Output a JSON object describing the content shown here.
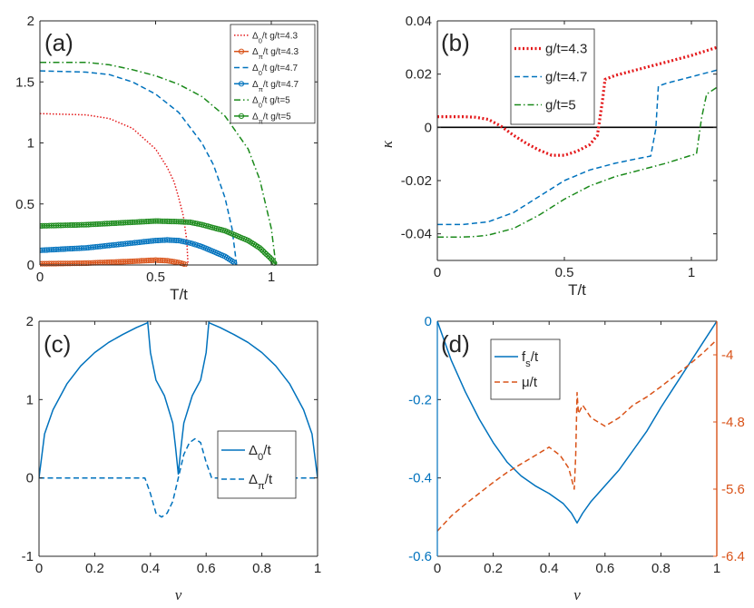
{
  "colors": {
    "blue": "#0072BD",
    "red": "#D95319",
    "darkred": "#E41A1C",
    "green": "#1B8A1B",
    "axis": "#262626",
    "black": "#000000"
  },
  "chart_data": [
    {
      "id": "a",
      "type": "line",
      "panel_label": "(a)",
      "xlabel": "T/t",
      "ylabel": "",
      "xlim": [
        0,
        1.2
      ],
      "ylim": [
        0,
        2
      ],
      "xticks": [
        0,
        0.5,
        1
      ],
      "xtick_labels": [
        "0",
        "0.5",
        "1"
      ],
      "yticks": [
        0,
        0.5,
        1,
        1.5,
        2
      ],
      "ytick_labels": [
        "0",
        "0.5",
        "1",
        "1.5",
        "2"
      ],
      "legend_position": "top-right",
      "series": [
        {
          "name": "Δ0/t  g/t=4.3",
          "legend_main": "Δ",
          "legend_sub": "0",
          "legend_rest": "/t  g/t=4.3",
          "color": "#E41A1C",
          "style": "dotted",
          "marker": "none",
          "x": [
            0,
            0.2,
            0.3,
            0.4,
            0.5,
            0.55,
            0.58,
            0.6,
            0.62,
            0.635,
            0.64
          ],
          "y": [
            1.24,
            1.23,
            1.2,
            1.12,
            0.95,
            0.8,
            0.68,
            0.55,
            0.4,
            0.2,
            0
          ]
        },
        {
          "name": "Δπ/t  g/t=4.3",
          "legend_main": "Δ",
          "legend_sub": "π",
          "legend_rest": "/t  g/t=4.3",
          "color": "#D95319",
          "style": "solid",
          "marker": "circle",
          "x": [
            0,
            0.1,
            0.2,
            0.3,
            0.4,
            0.5,
            0.55,
            0.6,
            0.62,
            0.635
          ],
          "y": [
            0.01,
            0.012,
            0.015,
            0.022,
            0.03,
            0.04,
            0.035,
            0.02,
            0.01,
            0
          ]
        },
        {
          "name": "Δ0/t  g/t=4.7",
          "legend_main": "Δ",
          "legend_sub": "0",
          "legend_rest": "/t  g/t=4.7",
          "color": "#0072BD",
          "style": "dashed",
          "marker": "none",
          "x": [
            0,
            0.2,
            0.3,
            0.4,
            0.5,
            0.6,
            0.7,
            0.75,
            0.8,
            0.83,
            0.85
          ],
          "y": [
            1.59,
            1.58,
            1.56,
            1.5,
            1.4,
            1.25,
            1.0,
            0.82,
            0.55,
            0.3,
            0
          ]
        },
        {
          "name": "Δπ/t  g/t=4.7",
          "legend_main": "Δ",
          "legend_sub": "π",
          "legend_rest": "/t  g/t=4.7",
          "color": "#0072BD",
          "style": "solid",
          "marker": "circle",
          "x": [
            0,
            0.1,
            0.2,
            0.3,
            0.4,
            0.5,
            0.55,
            0.6,
            0.65,
            0.7,
            0.75,
            0.8,
            0.84,
            0.85
          ],
          "y": [
            0.12,
            0.13,
            0.14,
            0.16,
            0.18,
            0.2,
            0.205,
            0.2,
            0.18,
            0.15,
            0.11,
            0.07,
            0.02,
            0
          ]
        },
        {
          "name": "Δ0/t  g/t=5",
          "legend_main": "Δ",
          "legend_sub": "0",
          "legend_rest": "/t  g/t=5",
          "color": "#1B8A1B",
          "style": "dashdot",
          "marker": "none",
          "x": [
            0,
            0.2,
            0.3,
            0.4,
            0.5,
            0.6,
            0.7,
            0.8,
            0.9,
            0.95,
            1.0,
            1.02
          ],
          "y": [
            1.66,
            1.66,
            1.64,
            1.6,
            1.55,
            1.48,
            1.38,
            1.22,
            0.95,
            0.7,
            0.3,
            0
          ]
        },
        {
          "name": "Δπ/t  g/t=5",
          "legend_main": "Δ",
          "legend_sub": "π",
          "legend_rest": "/t  g/t=5",
          "color": "#1B8A1B",
          "style": "solid",
          "marker": "circle",
          "x": [
            0,
            0.1,
            0.2,
            0.3,
            0.4,
            0.5,
            0.6,
            0.65,
            0.7,
            0.8,
            0.9,
            0.95,
            1.0,
            1.02
          ],
          "y": [
            0.32,
            0.325,
            0.33,
            0.34,
            0.35,
            0.36,
            0.355,
            0.35,
            0.33,
            0.28,
            0.2,
            0.14,
            0.05,
            0
          ]
        }
      ]
    },
    {
      "id": "b",
      "type": "line",
      "panel_label": "(b)",
      "xlabel": "T/t",
      "ylabel": "κ",
      "xlim": [
        0,
        1.1
      ],
      "ylim": [
        -0.05,
        0.04
      ],
      "xticks": [
        0,
        0.5,
        1
      ],
      "xtick_labels": [
        "0",
        "0.5",
        "1"
      ],
      "yticks": [
        -0.04,
        -0.02,
        0,
        0.02,
        0.04
      ],
      "ytick_labels": [
        "-0.04",
        "-0.02",
        "0",
        "0.02",
        "0.04"
      ],
      "zero_line": true,
      "legend_position": "top-left",
      "series": [
        {
          "name": "g/t=4.3",
          "color": "#E41A1C",
          "style": "dotted",
          "marker": "none",
          "x": [
            0,
            0.1,
            0.15,
            0.2,
            0.25,
            0.3,
            0.35,
            0.4,
            0.45,
            0.5,
            0.55,
            0.6,
            0.63,
            0.65,
            0.66,
            0.7,
            0.8,
            0.9,
            1.0,
            1.1
          ],
          "y": [
            0.004,
            0.004,
            0.0038,
            0.003,
            0.0005,
            -0.003,
            -0.006,
            -0.0085,
            -0.0105,
            -0.0105,
            -0.009,
            -0.0065,
            -0.003,
            0.01,
            0.018,
            0.0195,
            0.022,
            0.0245,
            0.027,
            0.03
          ]
        },
        {
          "name": "g/t=4.7",
          "color": "#0072BD",
          "style": "dashed",
          "marker": "none",
          "x": [
            0,
            0.1,
            0.15,
            0.2,
            0.3,
            0.4,
            0.5,
            0.6,
            0.7,
            0.8,
            0.84,
            0.86,
            0.87,
            0.9,
            1.0,
            1.1
          ],
          "y": [
            -0.0365,
            -0.0365,
            -0.036,
            -0.0355,
            -0.032,
            -0.026,
            -0.02,
            -0.016,
            -0.0135,
            -0.0115,
            -0.0108,
            -0.0005,
            0.0155,
            0.0165,
            0.019,
            0.0215
          ]
        },
        {
          "name": "g/t=5",
          "color": "#1B8A1B",
          "style": "dashdot",
          "marker": "none",
          "x": [
            0,
            0.1,
            0.15,
            0.2,
            0.3,
            0.4,
            0.5,
            0.6,
            0.7,
            0.8,
            0.9,
            1.0,
            1.02,
            1.04,
            1.06,
            1.1
          ],
          "y": [
            -0.0412,
            -0.0412,
            -0.041,
            -0.0405,
            -0.038,
            -0.033,
            -0.027,
            -0.022,
            -0.0185,
            -0.016,
            -0.0135,
            -0.0105,
            -0.01,
            0.0035,
            0.0125,
            0.015
          ]
        }
      ]
    },
    {
      "id": "c",
      "type": "line",
      "panel_label": "(c)",
      "xlabel": "ν",
      "ylabel": "",
      "xlim": [
        0,
        1
      ],
      "ylim": [
        -1,
        2
      ],
      "xticks": [
        0,
        0.2,
        0.4,
        0.6,
        0.8,
        1
      ],
      "xtick_labels": [
        "0",
        "0.2",
        "0.4",
        "0.6",
        "0.8",
        "1"
      ],
      "yticks": [
        -1,
        0,
        1,
        2
      ],
      "ytick_labels": [
        "-1",
        "0",
        "1",
        "2"
      ],
      "legend_position": "middle-right",
      "series": [
        {
          "name": "Δ0/t",
          "legend_main": "Δ",
          "legend_sub": "0",
          "legend_rest": "/t",
          "color": "#0072BD",
          "style": "solid",
          "marker": "none",
          "segments": [
            {
              "x": [
                0,
                0.02,
                0.05,
                0.1,
                0.15,
                0.2,
                0.25,
                0.3,
                0.35,
                0.39
              ],
              "y": [
                0,
                0.56,
                0.87,
                1.2,
                1.43,
                1.6,
                1.73,
                1.83,
                1.92,
                1.98
              ]
            },
            {
              "x": [
                0.39,
                0.4,
                0.42,
                0.45,
                0.48,
                0.49,
                0.5,
                0.51,
                0.52,
                0.55,
                0.58,
                0.6,
                0.61
              ],
              "y": [
                2.0,
                1.6,
                1.25,
                1.05,
                0.7,
                0.4,
                0.05,
                0.4,
                0.7,
                1.05,
                1.25,
                1.6,
                2.0
              ]
            },
            {
              "x": [
                0.61,
                0.65,
                0.7,
                0.75,
                0.8,
                0.85,
                0.9,
                0.95,
                0.98,
                1.0
              ],
              "y": [
                1.98,
                1.92,
                1.83,
                1.73,
                1.6,
                1.43,
                1.2,
                0.87,
                0.56,
                0
              ]
            }
          ]
        },
        {
          "name": "Δπ/t",
          "legend_main": "Δ",
          "legend_sub": "π",
          "legend_rest": "/t",
          "color": "#0072BD",
          "style": "dashed",
          "marker": "none",
          "x": [
            0,
            0.38,
            0.4,
            0.42,
            0.44,
            0.46,
            0.48,
            0.5,
            0.52,
            0.54,
            0.56,
            0.58,
            0.6,
            0.62,
            1.0
          ],
          "y": [
            0,
            0,
            -0.2,
            -0.45,
            -0.5,
            -0.45,
            -0.3,
            0,
            0.3,
            0.45,
            0.5,
            0.45,
            0.2,
            0,
            0
          ]
        }
      ]
    },
    {
      "id": "d",
      "type": "line",
      "panel_label": "(d)",
      "xlabel": "ν",
      "ylabel": "",
      "xlim": [
        0,
        1
      ],
      "ylim": [
        -0.6,
        0
      ],
      "xticks": [
        0,
        0.2,
        0.4,
        0.6,
        0.8,
        1
      ],
      "xtick_labels": [
        "0",
        "0.2",
        "0.4",
        "0.6",
        "0.8",
        "1"
      ],
      "yticks": [
        -0.6,
        -0.4,
        -0.2,
        0
      ],
      "ytick_labels": [
        "-0.6",
        "-0.4",
        "-0.2",
        "0"
      ],
      "y2lim": [
        -6.4,
        -3.6
      ],
      "y2ticks": [
        -6.4,
        -5.6,
        -4.8,
        -4
      ],
      "y2tick_labels": [
        "-6.4",
        "-5.6",
        "-4.8",
        "-4"
      ],
      "legend_position": "top-left",
      "series": [
        {
          "name": "fs/t",
          "legend_main": "f",
          "legend_sub": "s",
          "legend_rest": "/t",
          "axis": "left",
          "color": "#0072BD",
          "style": "solid",
          "marker": "none",
          "x": [
            0,
            0.05,
            0.1,
            0.15,
            0.2,
            0.25,
            0.3,
            0.35,
            0.4,
            0.45,
            0.48,
            0.5,
            0.52,
            0.55,
            0.6,
            0.65,
            0.7,
            0.75,
            0.8,
            0.85,
            0.9,
            0.95,
            1.0
          ],
          "y": [
            0,
            -0.1,
            -0.18,
            -0.25,
            -0.31,
            -0.36,
            -0.395,
            -0.42,
            -0.44,
            -0.465,
            -0.49,
            -0.515,
            -0.49,
            -0.46,
            -0.42,
            -0.38,
            -0.33,
            -0.28,
            -0.22,
            -0.165,
            -0.11,
            -0.055,
            0
          ]
        },
        {
          "name": "μ/t",
          "legend_main": "μ",
          "legend_sub": "",
          "legend_rest": "/t",
          "axis": "right",
          "color": "#D95319",
          "style": "dashed",
          "marker": "none",
          "x": [
            0,
            0.05,
            0.1,
            0.15,
            0.2,
            0.25,
            0.3,
            0.35,
            0.4,
            0.44,
            0.47,
            0.49,
            0.495,
            0.5,
            0.505,
            0.52,
            0.55,
            0.6,
            0.65,
            0.7,
            0.75,
            0.8,
            0.85,
            0.9,
            0.95,
            1.0
          ],
          "y": [
            -6.1,
            -5.92,
            -5.78,
            -5.65,
            -5.52,
            -5.4,
            -5.3,
            -5.2,
            -5.1,
            -5.2,
            -5.35,
            -5.6,
            -5.2,
            -4.45,
            -4.7,
            -4.6,
            -4.75,
            -4.85,
            -4.75,
            -4.6,
            -4.5,
            -4.38,
            -4.25,
            -4.12,
            -3.98,
            -3.82
          ]
        }
      ]
    }
  ]
}
